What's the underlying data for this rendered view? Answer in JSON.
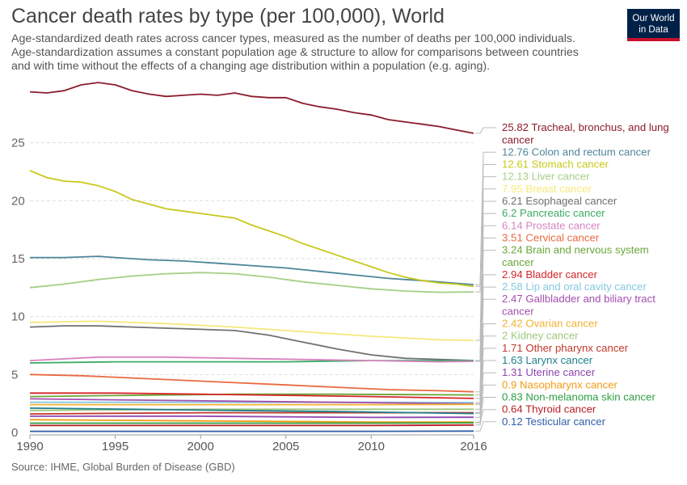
{
  "header": {
    "title": "Cancer death rates by type (per 100,000), World",
    "subtitle_lines": [
      "Age-standardized death rates across cancer types, measured as the number of deaths per 100,000 individuals.",
      "Age-standardization assumes a constant population age & structure to allow for comparisons between countries",
      "and with time without the effects of a changing age distribution within a population (e.g. aging)."
    ]
  },
  "logo": {
    "line1": "Our World",
    "line2": "in Data",
    "bg_color": "#002147",
    "accent_color": "#c8102e"
  },
  "source": "Source: IHME, Global Burden of Disease (GBD)",
  "chart_data": {
    "type": "line",
    "title": "Cancer death rates by type (per 100,000), World",
    "x_ticks": [
      1990,
      1995,
      2000,
      2005,
      2010,
      2016
    ],
    "y_ticks": [
      0,
      5,
      10,
      15,
      20,
      25
    ],
    "xlim": [
      1990,
      2016
    ],
    "ylim": [
      0,
      30
    ],
    "grid": "horizontal dashed",
    "legend": "right, end-of-line labels",
    "series": [
      {
        "name": "Tracheal, bronchus, and lung cancer",
        "label_lines": [
          "25.82 Tracheal, bronchus, and lung",
          "cancer"
        ],
        "color": "#8b1c2c",
        "x": [
          1990,
          1991,
          1992,
          1993,
          1994,
          1995,
          1996,
          1997,
          1998,
          1999,
          2000,
          2001,
          2002,
          2003,
          2004,
          2005,
          2006,
          2007,
          2008,
          2009,
          2010,
          2011,
          2012,
          2013,
          2014,
          2015,
          2016
        ],
        "values": [
          29.4,
          29.3,
          29.5,
          30.0,
          30.2,
          30.0,
          29.5,
          29.2,
          29.0,
          29.1,
          29.2,
          29.1,
          29.3,
          29.0,
          28.9,
          28.9,
          28.4,
          28.1,
          27.9,
          27.6,
          27.4,
          27.0,
          26.8,
          26.6,
          26.4,
          26.1,
          25.82
        ]
      },
      {
        "name": "Colon and rectum cancer",
        "label_lines": [
          "12.76 Colon and rectum cancer"
        ],
        "color": "#4c8599",
        "x": [
          1990,
          1992,
          1994,
          1995,
          1997,
          1999,
          2001,
          2003,
          2005,
          2007,
          2009,
          2011,
          2013,
          2016
        ],
        "values": [
          15.1,
          15.1,
          15.2,
          15.1,
          14.9,
          14.8,
          14.6,
          14.4,
          14.2,
          13.9,
          13.6,
          13.3,
          13.1,
          12.76
        ]
      },
      {
        "name": "Stomach cancer",
        "label_lines": [
          "12.61 Stomach cancer"
        ],
        "color": "#c8c81c",
        "x": [
          1990,
          1991,
          1992,
          1993,
          1994,
          1995,
          1996,
          1997,
          1998,
          1999,
          2000,
          2001,
          2002,
          2003,
          2004,
          2005,
          2006,
          2007,
          2008,
          2009,
          2010,
          2011,
          2012,
          2013,
          2014,
          2015,
          2016
        ],
        "values": [
          22.6,
          22.0,
          21.7,
          21.6,
          21.3,
          20.8,
          20.1,
          19.7,
          19.3,
          19.1,
          18.9,
          18.7,
          18.5,
          17.9,
          17.4,
          16.9,
          16.3,
          15.8,
          15.3,
          14.8,
          14.3,
          13.8,
          13.4,
          13.1,
          12.9,
          12.8,
          12.61
        ]
      },
      {
        "name": "Liver cancer",
        "label_lines": [
          "12.13 Liver cancer"
        ],
        "color": "#a4cf86",
        "x": [
          1990,
          1992,
          1994,
          1996,
          1998,
          2000,
          2002,
          2004,
          2006,
          2008,
          2010,
          2012,
          2014,
          2016
        ],
        "values": [
          12.5,
          12.8,
          13.2,
          13.5,
          13.7,
          13.8,
          13.7,
          13.4,
          13.0,
          12.7,
          12.4,
          12.2,
          12.1,
          12.13
        ]
      },
      {
        "name": "Breast cancer",
        "label_lines": [
          "7.95 Breast cancer"
        ],
        "color": "#f7e87c",
        "x": [
          1990,
          1994,
          1998,
          2002,
          2006,
          2010,
          2014,
          2016
        ],
        "values": [
          9.5,
          9.6,
          9.4,
          9.1,
          8.7,
          8.3,
          8.0,
          7.95
        ]
      },
      {
        "name": "Esophageal cancer",
        "label_lines": [
          "6.21 Esophageal cancer"
        ],
        "color": "#707070",
        "x": [
          1990,
          1992,
          1994,
          1996,
          1998,
          2000,
          2002,
          2004,
          2006,
          2008,
          2010,
          2012,
          2014,
          2016
        ],
        "values": [
          9.1,
          9.2,
          9.2,
          9.1,
          9.0,
          8.9,
          8.8,
          8.4,
          7.8,
          7.2,
          6.7,
          6.4,
          6.3,
          6.21
        ]
      },
      {
        "name": "Pancreatic cancer",
        "label_lines": [
          "6.2 Pancreatic cancer"
        ],
        "color": "#3cab64",
        "x": [
          1990,
          1995,
          2000,
          2005,
          2010,
          2016
        ],
        "values": [
          6.0,
          6.1,
          6.1,
          6.1,
          6.2,
          6.2
        ]
      },
      {
        "name": "Prostate cancer",
        "label_lines": [
          "6.14 Prostate cancer"
        ],
        "color": "#d883c1",
        "x": [
          1990,
          1994,
          1998,
          2002,
          2006,
          2010,
          2014,
          2016
        ],
        "values": [
          6.2,
          6.5,
          6.5,
          6.4,
          6.3,
          6.2,
          6.1,
          6.14
        ]
      },
      {
        "name": "Cervical cancer",
        "label_lines": [
          "3.51 Cervical cancer"
        ],
        "color": "#e8693f",
        "x": [
          1990,
          1993,
          1996,
          1999,
          2002,
          2005,
          2008,
          2011,
          2014,
          2016
        ],
        "values": [
          5.0,
          4.9,
          4.7,
          4.5,
          4.3,
          4.1,
          3.9,
          3.7,
          3.6,
          3.51
        ]
      },
      {
        "name": "Brain and nervous system cancer",
        "label_lines": [
          "3.24 Brain and nervous system",
          "cancer"
        ],
        "color": "#6aa63a",
        "x": [
          1990,
          1996,
          2002,
          2008,
          2016
        ],
        "values": [
          3.1,
          3.2,
          3.3,
          3.3,
          3.24
        ]
      },
      {
        "name": "Bladder cancer",
        "label_lines": [
          "2.94 Bladder cancer"
        ],
        "color": "#d6262b",
        "x": [
          1990,
          1995,
          2000,
          2005,
          2010,
          2016
        ],
        "values": [
          3.4,
          3.4,
          3.3,
          3.2,
          3.1,
          2.94
        ]
      },
      {
        "name": "Lip and oral cavity cancer",
        "label_lines": [
          "2.58 Lip and oral cavity cancer"
        ],
        "color": "#86c8e0",
        "x": [
          1990,
          2000,
          2010,
          2016
        ],
        "values": [
          2.6,
          2.6,
          2.6,
          2.58
        ]
      },
      {
        "name": "Gallbladder and biliary tract cancer",
        "label_lines": [
          "2.47 Gallbladder and biliary tract",
          "cancer"
        ],
        "color": "#a44fb0",
        "x": [
          1990,
          1996,
          2002,
          2008,
          2016
        ],
        "values": [
          2.9,
          2.8,
          2.7,
          2.6,
          2.47
        ]
      },
      {
        "name": "Ovarian cancer",
        "label_lines": [
          "2.42 Ovarian cancer"
        ],
        "color": "#f2b230",
        "x": [
          1990,
          2000,
          2010,
          2016
        ],
        "values": [
          2.4,
          2.4,
          2.4,
          2.42
        ]
      },
      {
        "name": "Kidney cancer",
        "label_lines": [
          "2 Kidney cancer"
        ],
        "color": "#9ec87e",
        "x": [
          1990,
          2000,
          2010,
          2016
        ],
        "values": [
          1.9,
          2.0,
          2.0,
          2.0
        ]
      },
      {
        "name": "Other pharynx cancer",
        "label_lines": [
          "1.71 Other pharynx cancer"
        ],
        "color": "#c0392b",
        "x": [
          1990,
          2000,
          2010,
          2016
        ],
        "values": [
          1.6,
          1.7,
          1.7,
          1.71
        ]
      },
      {
        "name": "Larynx cancer",
        "label_lines": [
          "1.63 Larynx cancer"
        ],
        "color": "#1f7f8a",
        "x": [
          1990,
          1996,
          2002,
          2008,
          2016
        ],
        "values": [
          2.1,
          2.0,
          1.9,
          1.8,
          1.63
        ]
      },
      {
        "name": "Uterine cancer",
        "label_lines": [
          "1.31 Uterine cancer"
        ],
        "color": "#8e44ad",
        "x": [
          1990,
          2000,
          2010,
          2016
        ],
        "values": [
          1.4,
          1.4,
          1.3,
          1.31
        ]
      },
      {
        "name": "Nasopharynx cancer",
        "label_lines": [
          "0.9 Nasopharynx cancer"
        ],
        "color": "#f39c12",
        "x": [
          1990,
          2000,
          2010,
          2016
        ],
        "values": [
          1.1,
          1.0,
          0.9,
          0.9
        ]
      },
      {
        "name": "Non-melanoma skin cancer",
        "label_lines": [
          "0.83 Non-melanoma skin cancer"
        ],
        "color": "#2e9e44",
        "x": [
          1990,
          2000,
          2010,
          2016
        ],
        "values": [
          0.8,
          0.8,
          0.8,
          0.83
        ]
      },
      {
        "name": "Thyroid cancer",
        "label_lines": [
          "0.64 Thyroid cancer"
        ],
        "color": "#b81d24",
        "x": [
          1990,
          2000,
          2010,
          2016
        ],
        "values": [
          0.6,
          0.6,
          0.6,
          0.64
        ]
      },
      {
        "name": "Testicular cancer",
        "label_lines": [
          "0.12 Testicular cancer"
        ],
        "color": "#2f5fa8",
        "x": [
          1990,
          2000,
          2010,
          2016
        ],
        "values": [
          0.1,
          0.1,
          0.1,
          0.12
        ]
      }
    ]
  }
}
